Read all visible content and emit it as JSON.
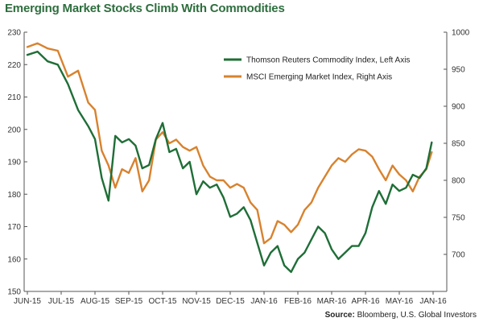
{
  "title": "Emerging Market Stocks Climb With Commodities",
  "source": {
    "label": "Source:",
    "text": "Bloomberg, U.S. Global Investors"
  },
  "chart_data": {
    "type": "line",
    "title": "Emerging Market Stocks Climb With Commodities",
    "x_tick_labels": [
      "JUN-15",
      "JUL-15",
      "AUG-15",
      "SEP-15",
      "OCT-15",
      "NOV-15",
      "DEC-15",
      "JAN-16",
      "FEB-16",
      "MAR-16",
      "APR-16",
      "MAY-16",
      "JAN-16"
    ],
    "x_range": [
      0,
      12.2
    ],
    "y_left": {
      "min": 150,
      "max": 230,
      "ticks": [
        150,
        160,
        170,
        180,
        190,
        200,
        210,
        220,
        230
      ]
    },
    "y_right": {
      "min": 650,
      "max": 1000,
      "ticks": [
        700,
        750,
        800,
        850,
        900,
        950,
        1000
      ]
    },
    "grid": false,
    "legend_position": "top-center",
    "series": [
      {
        "name": "Thomson Reuters Commodity Index, Left Axis",
        "axis": "left",
        "color": "#1f6e37",
        "x": [
          0,
          0.3,
          0.6,
          0.9,
          1.2,
          1.5,
          1.8,
          2.0,
          2.2,
          2.4,
          2.6,
          2.8,
          3.0,
          3.2,
          3.4,
          3.6,
          3.8,
          4.0,
          4.2,
          4.4,
          4.6,
          4.8,
          5.0,
          5.2,
          5.4,
          5.6,
          5.8,
          6.0,
          6.2,
          6.4,
          6.6,
          6.8,
          7.0,
          7.2,
          7.4,
          7.6,
          7.8,
          8.0,
          8.2,
          8.4,
          8.6,
          8.8,
          9.0,
          9.2,
          9.4,
          9.6,
          9.8,
          10.0,
          10.2,
          10.4,
          10.6,
          10.8,
          11.0,
          11.2,
          11.4,
          11.6,
          11.8,
          11.96
        ],
        "values": [
          223,
          224,
          221,
          220,
          214,
          206,
          201,
          197,
          185,
          178,
          198,
          196,
          197,
          195,
          188,
          189,
          197,
          202,
          193,
          194,
          188,
          190,
          180,
          184,
          182,
          183,
          179,
          173,
          174,
          176,
          172,
          165,
          158,
          162,
          164,
          158,
          156,
          160,
          162,
          166,
          170,
          168,
          163,
          160,
          162,
          164,
          164,
          168,
          176,
          181,
          177,
          183,
          181,
          182,
          186,
          185,
          188,
          196
        ]
      },
      {
        "name": "MSCI Emerging Market Index, Right Axis",
        "axis": "right",
        "color": "#d8822e",
        "x": [
          0,
          0.3,
          0.6,
          0.9,
          1.2,
          1.5,
          1.8,
          2.0,
          2.2,
          2.4,
          2.6,
          2.8,
          3.0,
          3.2,
          3.4,
          3.6,
          3.8,
          4.0,
          4.2,
          4.4,
          4.6,
          4.8,
          5.0,
          5.2,
          5.4,
          5.6,
          5.8,
          6.0,
          6.2,
          6.4,
          6.6,
          6.8,
          7.0,
          7.2,
          7.4,
          7.6,
          7.8,
          8.0,
          8.2,
          8.4,
          8.6,
          8.8,
          9.0,
          9.2,
          9.4,
          9.6,
          9.8,
          10.0,
          10.2,
          10.4,
          10.6,
          10.8,
          11.0,
          11.2,
          11.4,
          11.6,
          11.8,
          11.96
        ],
        "values": [
          980,
          985,
          978,
          975,
          940,
          948,
          905,
          895,
          840,
          820,
          790,
          815,
          810,
          830,
          785,
          800,
          855,
          865,
          850,
          855,
          845,
          840,
          845,
          820,
          805,
          800,
          800,
          790,
          795,
          790,
          770,
          760,
          715,
          722,
          745,
          740,
          730,
          740,
          760,
          770,
          790,
          805,
          820,
          830,
          825,
          835,
          842,
          840,
          832,
          815,
          800,
          820,
          808,
          800,
          785,
          805,
          815,
          838
        ]
      }
    ]
  }
}
